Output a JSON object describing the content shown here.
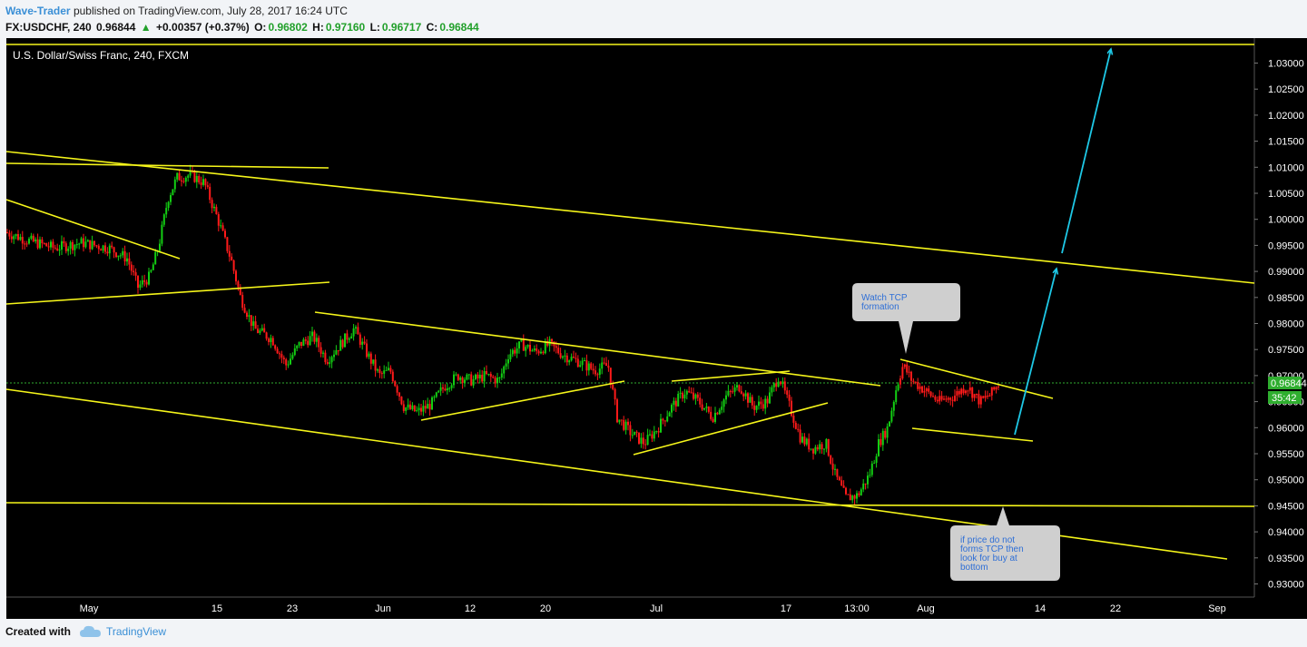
{
  "header": {
    "author": "Wave-Trader",
    "published_text": "published on TradingView.com, July 28, 2017 16:24 UTC",
    "symbol": "FX:USDCHF, 240",
    "last": "0.96844",
    "arrow": "▲",
    "change": "+0.00357 (+0.37%)",
    "open_label": "O:",
    "open": "0.96802",
    "high_label": "H:",
    "high": "0.97160",
    "low_label": "L:",
    "low": "0.96717",
    "close_label": "C:",
    "close": "0.96844"
  },
  "chart_data": {
    "type": "candlestick",
    "title": "U.S. Dollar/Swiss Franc, 240, FXCM",
    "y_ticks": [
      "1.03000",
      "1.02500",
      "1.02000",
      "1.01500",
      "1.01000",
      "1.00500",
      "1.00000",
      "0.99500",
      "0.99000",
      "0.98500",
      "0.98000",
      "0.97500",
      "0.97000",
      "0.96500",
      "0.96000",
      "0.95500",
      "0.95000",
      "0.94500",
      "0.94000",
      "0.93500",
      "0.93000"
    ],
    "x_ticks": [
      "May",
      "15",
      "23",
      "Jun",
      "12",
      "20",
      "Jul",
      "17",
      "13:00",
      "Aug",
      "14",
      "22",
      "Sep"
    ],
    "ylim": [
      0.928,
      1.0325
    ],
    "price_line": 0.96844,
    "price_label": "0.96844",
    "countdown_label": "35:42",
    "colors": {
      "up": "#13ce13",
      "down": "#ff1a1a",
      "trendline": "#f5f51a",
      "arrow": "#1ec8e6",
      "price_line": "#2fae2f",
      "background": "#000000"
    },
    "annotations": [
      {
        "text_lines": [
          "Watch TCP",
          "formation"
        ]
      },
      {
        "text_lines": [
          "if price do not",
          "forms TCP then",
          "look for buy at",
          "bottom"
        ]
      }
    ]
  },
  "footer": {
    "created_with": "Created with",
    "brand": "TradingView"
  }
}
